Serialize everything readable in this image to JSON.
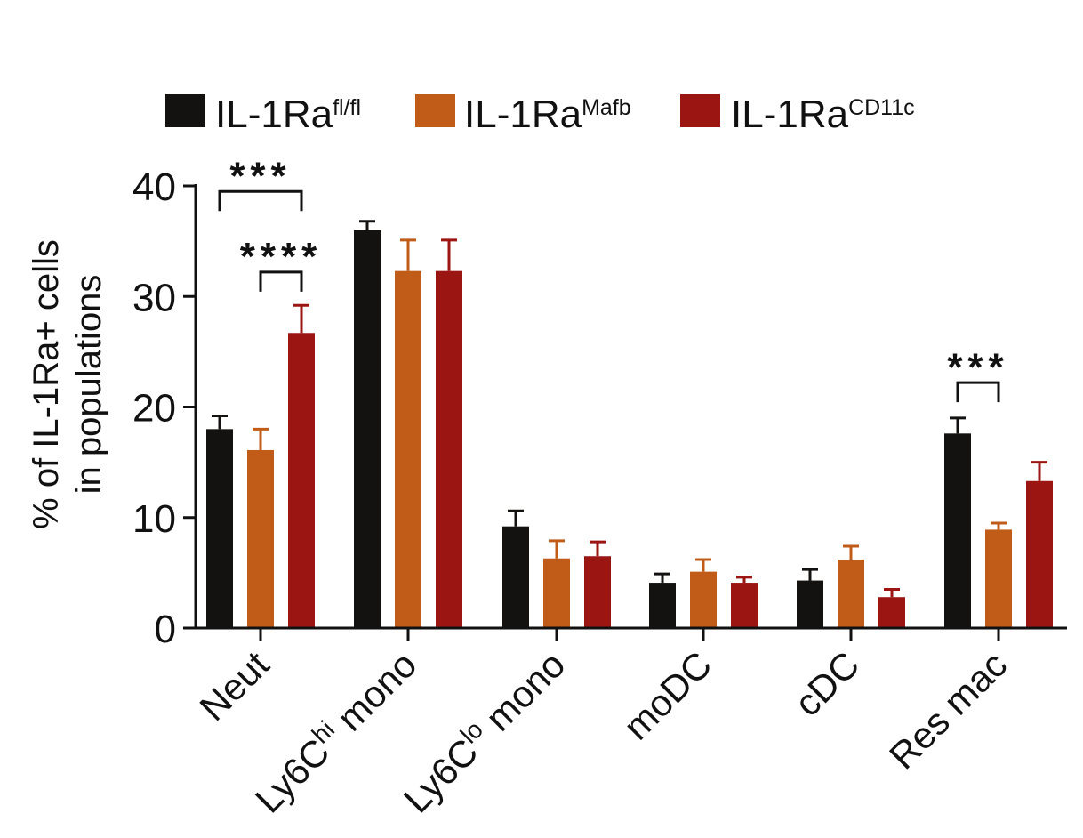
{
  "chart_data": {
    "type": "bar",
    "ylabel_line1": "% of IL-1Ra+ cells",
    "ylabel_line2": "in populations",
    "ylim": [
      0,
      40
    ],
    "yticks": [
      0,
      10,
      20,
      30,
      40
    ],
    "ytick_labels": [
      "0",
      "10",
      "20",
      "30",
      "40"
    ],
    "categories": [
      {
        "base": "Neut",
        "sup": "",
        "tail": ""
      },
      {
        "base": "Ly6C",
        "sup": "hi",
        "tail": " mono"
      },
      {
        "base": "Ly6C",
        "sup": "lo",
        "tail": " mono"
      },
      {
        "base": "moDC",
        "sup": "",
        "tail": ""
      },
      {
        "base": "cDC",
        "sup": "",
        "tail": ""
      },
      {
        "base": "Res mac",
        "sup": "",
        "tail": ""
      }
    ],
    "legend_position": "top",
    "series": [
      {
        "name_base": "IL-1Ra",
        "name_sup": "fl/fl",
        "color": "#141210",
        "values": [
          18.0,
          36.0,
          9.2,
          4.1,
          4.3,
          17.6
        ],
        "errors": [
          1.2,
          0.8,
          1.4,
          0.8,
          1.0,
          1.4
        ]
      },
      {
        "name_base": "IL-1Ra",
        "name_sup": "Mafb",
        "color": "#c05c18",
        "values": [
          16.1,
          32.3,
          6.3,
          5.1,
          6.2,
          8.9
        ],
        "errors": [
          1.9,
          2.8,
          1.6,
          1.1,
          1.2,
          0.6
        ]
      },
      {
        "name_base": "IL-1Ra",
        "name_sup": "CD11c",
        "color": "#9b1512",
        "values": [
          26.7,
          32.3,
          6.5,
          4.1,
          2.8,
          13.3
        ],
        "errors": [
          2.5,
          2.8,
          1.3,
          0.5,
          0.7,
          1.7
        ]
      }
    ],
    "significance": [
      {
        "label": "***",
        "category": 0,
        "from_series": 0,
        "to_series": 2,
        "level": 39.5,
        "text_level": 41.5
      },
      {
        "label": "****",
        "category": 0,
        "from_series": 1,
        "to_series": 2,
        "level": 32.2,
        "text_level": 34.2
      },
      {
        "label": "***",
        "category": 5,
        "from_series": 0,
        "to_series": 1,
        "level": 22.2,
        "text_level": 24.2
      }
    ]
  }
}
